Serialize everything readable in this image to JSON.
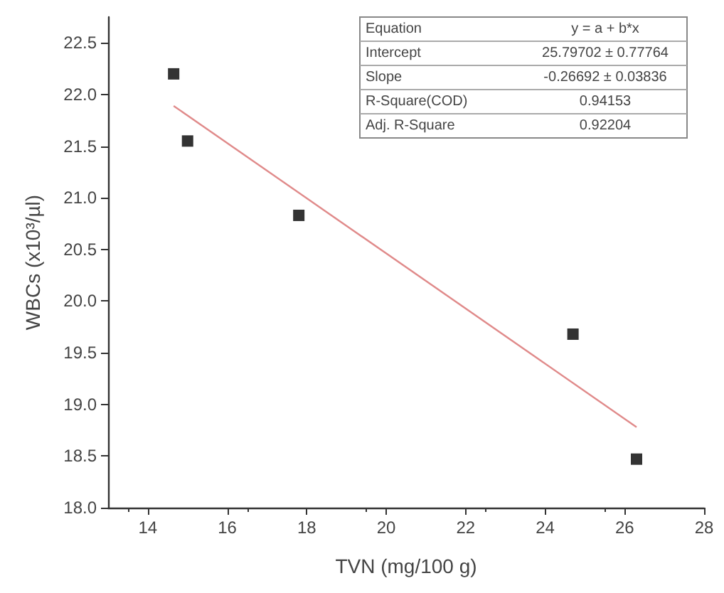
{
  "chart_data": {
    "type": "scatter",
    "xlabel": "TVN (mg/100 g)",
    "ylabel": "WBCs (x10³/µl)",
    "series": [
      {
        "color": "#000000",
        "marker": "square",
        "x": [
          14.65,
          15.0,
          17.8,
          24.7,
          26.3
        ],
        "values": [
          22.2,
          21.55,
          20.83,
          19.68,
          18.47
        ]
      },
      {
        "type": "line",
        "color": "#e08a8a",
        "marker": "none",
        "x": [
          14.65,
          26.3
        ],
        "values": [
          21.89,
          18.78
        ]
      }
    ],
    "xlim": [
      13,
      28
    ],
    "xticks": [
      14,
      16,
      18,
      20,
      22,
      24,
      26,
      28
    ],
    "ylim": [
      18,
      22.75
    ],
    "yticks": [
      {
        "value": 18,
        "label": "18.0"
      },
      18.5,
      {
        "value": 19,
        "label": "19.0"
      },
      19.5,
      {
        "value": 20,
        "label": "20.0"
      },
      20.5,
      {
        "value": 21,
        "label": "21.0"
      },
      21.5,
      {
        "value": 22,
        "label": "22.0"
      },
      22.5
    ],
    "grid": false,
    "annotations": [
      "Equation",
      "y = a + b*x",
      "Intercept",
      "25.79702 ± 0.77764",
      "Slope",
      "-0.26692 ± 0.03836",
      "R-Square(COD)",
      "0.94153",
      "Adj. R-Square",
      "0.92204"
    ]
  }
}
